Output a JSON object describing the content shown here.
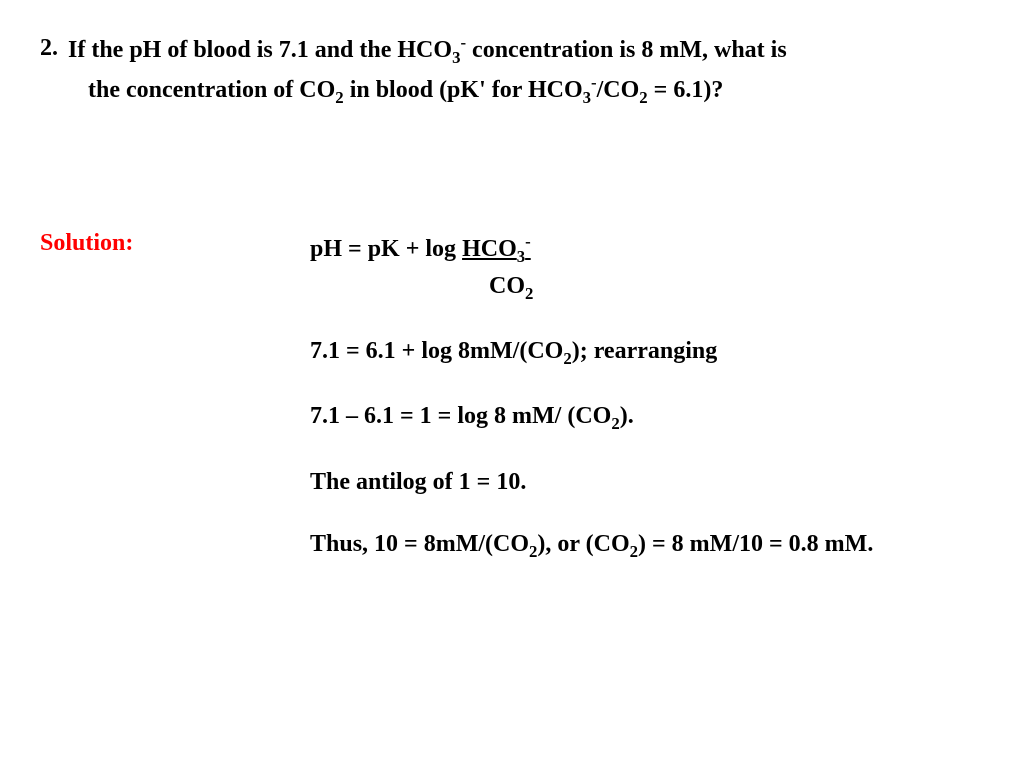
{
  "question": {
    "number": "2.",
    "line1_a": "If the pH of blood is 7.1 and the HCO",
    "line1_b": " concentration is 8 mM, what is",
    "line2_a": "the concentration of CO",
    "line2_b": " in blood (pK' for HCO",
    "line2_c": "/CO",
    "line2_d": " = 6.1)?"
  },
  "solution": {
    "label": "Solution:",
    "line1_a": "pH = pK + log  ",
    "line1_b": "HCO",
    "line2_a": "CO",
    "line3_a": "7.1 = 6.1 + log 8mM/(CO",
    "line3_b": "); rearranging",
    "line4_a": "7.1 – 6.1 = 1 = log 8 mM/ (CO",
    "line4_b": ").",
    "line5": "The antilog of 1 = 10.",
    "line6_a": "Thus, 10 = 8mM/(CO",
    "line6_b": "), or (CO",
    "line6_c": ") = 8 mM/10 = 0.8 mM."
  },
  "colors": {
    "text": "#000000",
    "solution_label": "#ff0000",
    "background": "#ffffff"
  },
  "typography": {
    "font_family": "Times New Roman",
    "font_size_pt": 18,
    "font_weight": "bold"
  }
}
